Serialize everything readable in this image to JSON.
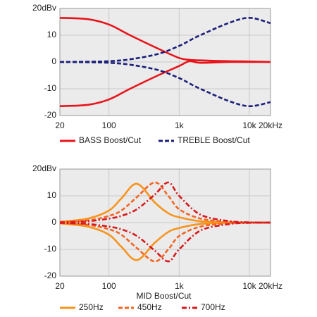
{
  "chart_data": [
    {
      "type": "line",
      "log_x": true,
      "grid": true,
      "legend": "bottom",
      "x": [
        20,
        50,
        100,
        200,
        500,
        1000,
        1400,
        2000,
        5000,
        10000,
        20000
      ],
      "xlim": [
        20,
        20000
      ],
      "xticks": [
        20,
        100,
        {
          "value": 1000,
          "label": "1k"
        },
        {
          "value": 10000,
          "label": "10k"
        },
        {
          "value": 20000,
          "label": "20kHz"
        }
      ],
      "ylim": [
        -20,
        20
      ],
      "yticks": [
        {
          "value": 20,
          "label": "20dBv"
        },
        10,
        0,
        -10,
        -20
      ],
      "series": [
        {
          "name": "BASS Boost/Cut",
          "color": "#e8141b",
          "dash": "solid",
          "values": [
            16.5,
            16,
            14,
            10,
            5,
            1.5,
            0.8,
            0.6,
            0.3,
            0.2,
            0
          ],
          "cut_values": [
            -16.5,
            -16,
            -14,
            -10,
            -5,
            -1.5,
            0.3,
            -0.3,
            0,
            0,
            0
          ]
        },
        {
          "name": "TREBLE Boost/Cut",
          "color": "#1b1f7a",
          "dash": "dash",
          "values": [
            0,
            0.1,
            0.3,
            1,
            3,
            6,
            8,
            10,
            14.5,
            16.5,
            14.5
          ],
          "cut_values": [
            0,
            -0.1,
            -0.3,
            -1,
            -3,
            -6,
            -8,
            -10,
            -14.5,
            -16.5,
            -15
          ]
        }
      ]
    },
    {
      "type": "line",
      "log_x": true,
      "grid": true,
      "legend": "bottom",
      "xlabel": "MID Boost/Cut",
      "x": [
        20,
        50,
        100,
        150,
        250,
        450,
        700,
        1000,
        2000,
        5000,
        10000,
        20000
      ],
      "xlim": [
        20,
        20000
      ],
      "xticks": [
        20,
        100,
        {
          "value": 1000,
          "label": "1k"
        },
        {
          "value": 10000,
          "label": "10k"
        },
        {
          "value": 20000,
          "label": "20kHz"
        }
      ],
      "ylim": [
        -20,
        20
      ],
      "yticks": [
        {
          "value": 20,
          "label": "20dBv"
        },
        10,
        0,
        -10,
        -20
      ],
      "series": [
        {
          "name": "250Hz",
          "color": "#f7941d",
          "dash": "solid",
          "values": [
            0.3,
            1.5,
            4.5,
            9,
            14.5,
            7.5,
            3.5,
            2,
            0.5,
            0.1,
            0,
            0
          ],
          "cut_values": [
            -0.3,
            -1.5,
            -4.5,
            -9,
            -14,
            -7.5,
            -3.5,
            -2,
            -0.5,
            -0.1,
            0,
            0
          ]
        },
        {
          "name": "450Hz",
          "color": "#f26522",
          "dash": "dash",
          "values": [
            0.2,
            0.8,
            2.5,
            4.5,
            9.5,
            15,
            10,
            5,
            1.5,
            0.3,
            0,
            0
          ],
          "cut_values": [
            -0.2,
            -0.8,
            -2.5,
            -4.5,
            -9.5,
            -14.5,
            -10,
            -5,
            -1.5,
            -0.3,
            0,
            0
          ]
        },
        {
          "name": "700Hz",
          "color": "#d7191c",
          "dash": "dashdot",
          "values": [
            0.1,
            0.5,
            1.5,
            2.5,
            5,
            10.5,
            15,
            10,
            3,
            0.6,
            0.1,
            0
          ],
          "cut_values": [
            -0.1,
            -0.5,
            -1.5,
            -2.5,
            -5,
            -10.5,
            -14.5,
            -10,
            -3,
            -0.6,
            -0.1,
            0
          ]
        }
      ]
    }
  ]
}
